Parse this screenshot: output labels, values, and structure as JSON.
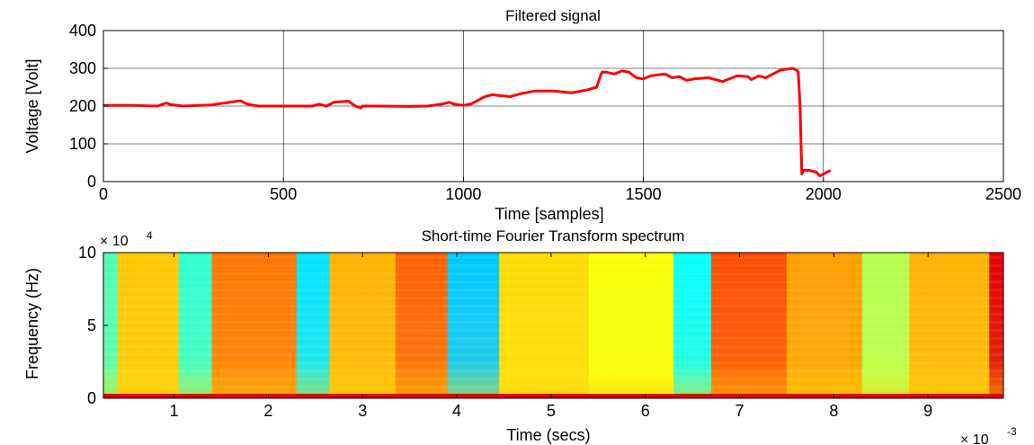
{
  "chart_data": [
    {
      "type": "line",
      "title": "Filtered signal",
      "xlabel": "Time [samples]",
      "ylabel": "Voltage [Volt]",
      "xlim": [
        0,
        2500
      ],
      "ylim": [
        0,
        400
      ],
      "xticks": [
        0,
        500,
        1000,
        1500,
        2000,
        2500
      ],
      "yticks": [
        0,
        100,
        200,
        300,
        400
      ],
      "grid": true,
      "line_color": "#ff0000",
      "series": [
        {
          "x": [
            0,
            80,
            150,
            175,
            185,
            220,
            300,
            350,
            380,
            400,
            430,
            500,
            580,
            600,
            620,
            640,
            680,
            700,
            715,
            720,
            760,
            850,
            900,
            940,
            960,
            975,
            1000,
            1020,
            1040,
            1060,
            1080,
            1110,
            1130,
            1160,
            1200,
            1250,
            1300,
            1340,
            1370,
            1380,
            1385,
            1395,
            1420,
            1440,
            1460,
            1480,
            1500,
            1520,
            1560,
            1580,
            1600,
            1620,
            1640,
            1680,
            1700,
            1720,
            1760,
            1790,
            1800,
            1820,
            1840,
            1860,
            1880,
            1900,
            1915,
            1925,
            1930,
            1935,
            1940,
            1945,
            1960,
            1980,
            1990,
            2000,
            2020
          ],
          "y": [
            202,
            202,
            200,
            208,
            204,
            200,
            203,
            210,
            214,
            205,
            200,
            200,
            200,
            205,
            200,
            210,
            213,
            200,
            195,
            200,
            200,
            199,
            200,
            205,
            210,
            205,
            202,
            205,
            215,
            225,
            230,
            227,
            225,
            233,
            240,
            240,
            235,
            242,
            250,
            278,
            290,
            290,
            285,
            293,
            290,
            275,
            272,
            280,
            285,
            275,
            278,
            268,
            272,
            275,
            270,
            265,
            280,
            278,
            270,
            280,
            275,
            285,
            295,
            298,
            300,
            295,
            290,
            200,
            20,
            30,
            30,
            25,
            15,
            20,
            30
          ]
        }
      ]
    },
    {
      "type": "heatmap",
      "title": "Short-time Fourier Transform spectrum",
      "xlabel": "Time (secs)",
      "ylabel": "Frequency (Hz)",
      "x_exponent_label": "× 10",
      "x_exponent": "-3",
      "y_exponent_label": "× 10",
      "y_exponent": "4",
      "xlim": [
        0.25,
        9.8
      ],
      "ylim": [
        0,
        10
      ],
      "xticks": [
        1,
        2,
        3,
        4,
        5,
        6,
        7,
        8,
        9
      ],
      "yticks": [
        0,
        5,
        10
      ],
      "colormap": "jet",
      "column_bands": [
        {
          "x0": 0.25,
          "x1": 0.4,
          "level": 0.45
        },
        {
          "x0": 0.4,
          "x1": 1.05,
          "level": 0.68
        },
        {
          "x0": 1.05,
          "x1": 1.4,
          "level": 0.42
        },
        {
          "x0": 1.4,
          "x1": 2.3,
          "level": 0.76
        },
        {
          "x0": 2.3,
          "x1": 2.65,
          "level": 0.35
        },
        {
          "x0": 2.65,
          "x1": 3.35,
          "level": 0.7
        },
        {
          "x0": 3.35,
          "x1": 3.9,
          "level": 0.78
        },
        {
          "x0": 3.9,
          "x1": 4.45,
          "level": 0.32
        },
        {
          "x0": 4.45,
          "x1": 5.4,
          "level": 0.66
        },
        {
          "x0": 5.4,
          "x1": 6.3,
          "level": 0.62
        },
        {
          "x0": 6.3,
          "x1": 6.7,
          "level": 0.38
        },
        {
          "x0": 6.7,
          "x1": 7.5,
          "level": 0.8
        },
        {
          "x0": 7.5,
          "x1": 8.3,
          "level": 0.72
        },
        {
          "x0": 8.3,
          "x1": 8.8,
          "level": 0.55
        },
        {
          "x0": 8.8,
          "x1": 9.65,
          "level": 0.7
        },
        {
          "x0": 9.65,
          "x1": 9.8,
          "level": 0.9
        }
      ]
    }
  ]
}
